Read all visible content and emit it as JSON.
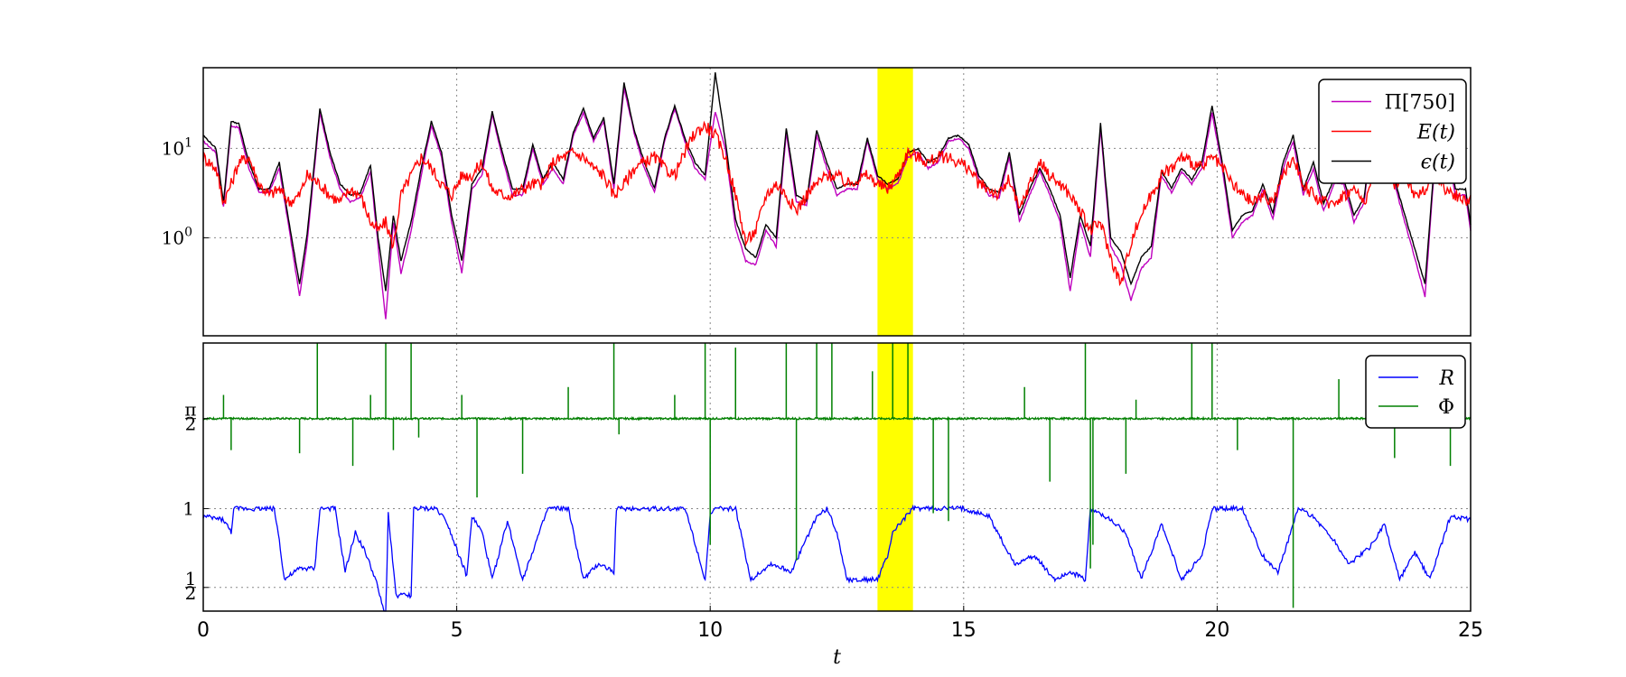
{
  "chart_data": [
    {
      "type": "line",
      "panel": "top",
      "yscale": "log",
      "xlim": [
        0,
        25
      ],
      "ylim": [
        0.08,
        80
      ],
      "grid": true,
      "legend_position": "top-right",
      "highlight_span": {
        "x": [
          13.3,
          14.0
        ],
        "color": "#ffff00"
      },
      "y_tick_labels": [
        "10^0",
        "10^1"
      ],
      "y_tick_values": [
        1,
        10
      ],
      "x": [
        0,
        0.25,
        0.4,
        0.55,
        0.7,
        0.9,
        1.1,
        1.3,
        1.5,
        1.7,
        1.9,
        2.05,
        2.3,
        2.5,
        2.7,
        2.9,
        3.1,
        3.3,
        3.45,
        3.6,
        3.75,
        3.9,
        4.1,
        4.3,
        4.5,
        4.7,
        4.9,
        5.1,
        5.3,
        5.5,
        5.7,
        5.9,
        6.1,
        6.3,
        6.5,
        6.7,
        6.9,
        7.1,
        7.3,
        7.5,
        7.7,
        7.9,
        8.1,
        8.3,
        8.5,
        8.7,
        8.9,
        9.1,
        9.3,
        9.5,
        9.7,
        9.9,
        10.1,
        10.3,
        10.5,
        10.7,
        10.9,
        11.1,
        11.3,
        11.5,
        11.7,
        11.9,
        12.1,
        12.3,
        12.5,
        12.7,
        12.9,
        13.1,
        13.3,
        13.5,
        13.7,
        13.9,
        14.1,
        14.3,
        14.5,
        14.7,
        14.9,
        15.1,
        15.3,
        15.5,
        15.7,
        15.9,
        16.1,
        16.3,
        16.5,
        16.7,
        16.9,
        17.1,
        17.3,
        17.5,
        17.7,
        17.9,
        18.1,
        18.3,
        18.5,
        18.7,
        18.9,
        19.1,
        19.3,
        19.5,
        19.7,
        19.9,
        20.1,
        20.3,
        20.5,
        20.7,
        20.9,
        21.1,
        21.3,
        21.5,
        21.7,
        21.9,
        22.1,
        22.3,
        22.5,
        22.7,
        22.9,
        23.1,
        23.3,
        23.5,
        23.7,
        23.9,
        24.1,
        24.3,
        24.5,
        24.7,
        24.9,
        25
      ],
      "series": [
        {
          "name": "Π[750]",
          "color": "#bf00bf",
          "values": [
            12,
            9,
            2.2,
            18,
            17,
            6,
            3.2,
            3.2,
            6,
            1.2,
            0.22,
            0.9,
            25,
            8,
            3.5,
            2.5,
            2.8,
            5.5,
            0.8,
            0.12,
            1.5,
            0.4,
            1.2,
            5,
            18,
            8,
            1.5,
            0.4,
            3.5,
            5,
            24,
            8,
            3,
            3,
            10,
            4,
            6,
            4,
            14,
            25,
            12,
            20,
            3.5,
            48,
            15,
            6,
            3.2,
            12,
            28,
            12,
            6,
            4.5,
            26,
            10,
            1.3,
            0.55,
            0.5,
            1.2,
            0.8,
            15,
            2.5,
            2.3,
            14,
            6,
            3,
            3.5,
            3.5,
            12,
            4.5,
            3.5,
            4,
            8,
            9,
            6,
            7,
            12,
            13,
            10,
            4.5,
            3,
            2.8,
            8,
            1.5,
            3,
            5.5,
            3,
            1.5,
            0.25,
            1.5,
            0.6,
            17,
            0.8,
            0.5,
            0.2,
            0.45,
            0.6,
            5,
            3.2,
            5.5,
            4,
            6,
            25,
            6,
            1,
            1.5,
            1.8,
            3.5,
            1.6,
            6,
            12,
            3,
            6,
            2,
            4,
            4,
            1.5,
            2.5,
            25,
            8,
            4,
            1.5,
            0.6,
            0.22,
            8,
            12,
            3,
            3,
            1.2
          ]
        },
        {
          "name": "E(t)",
          "color": "#ff0000",
          "values": [
            8,
            6,
            2.5,
            4,
            7,
            8,
            4,
            3,
            3.5,
            2.5,
            3,
            5,
            4,
            3,
            2.5,
            3.5,
            3,
            1.5,
            1.2,
            1.5,
            0.8,
            3,
            5,
            8,
            6,
            4,
            3,
            5,
            5,
            7,
            3.5,
            3,
            3,
            3.5,
            4,
            4,
            7,
            8,
            9,
            8,
            6,
            5,
            3,
            4,
            6,
            7,
            8,
            6,
            5,
            9,
            15,
            18,
            14,
            8,
            3,
            0.9,
            1.2,
            3,
            4,
            3,
            2,
            3,
            4,
            5,
            5,
            4,
            4.5,
            5,
            4,
            3.5,
            5,
            9,
            8,
            7,
            8,
            8,
            7,
            6,
            4,
            3.5,
            3,
            4.5,
            2,
            4,
            7,
            5,
            4,
            3,
            2,
            1.2,
            1.5,
            0.6,
            0.3,
            0.9,
            1.8,
            3,
            5,
            6,
            8,
            7,
            6,
            8,
            6,
            4,
            3,
            2.5,
            3,
            2.5,
            5,
            8,
            4,
            3,
            2.5,
            2.5,
            3,
            3.5,
            2.5,
            5,
            6,
            4,
            5,
            3,
            3.5,
            5,
            3.5,
            3,
            2.5,
            3
          ]
        },
        {
          "name": "ϵ(t)",
          "color": "#000000",
          "values": [
            14,
            10,
            2.5,
            20,
            19,
            7,
            3.5,
            3.5,
            7,
            1.4,
            0.3,
            1.1,
            28,
            9,
            4,
            3,
            3.2,
            6.5,
            1,
            0.25,
            1.8,
            0.55,
            1.5,
            6,
            20,
            9,
            1.8,
            0.55,
            4,
            6,
            26,
            9,
            3.5,
            3.5,
            11,
            4.5,
            7,
            4.5,
            15,
            28,
            13,
            22,
            4,
            55,
            16,
            7,
            3.6,
            13,
            30,
            13,
            7,
            5,
            70,
            12,
            1.6,
            0.75,
            0.6,
            1.4,
            1,
            17,
            3,
            2.6,
            16,
            7,
            3.5,
            4,
            4,
            13,
            5,
            4,
            4.5,
            9,
            10,
            7,
            8,
            13,
            14,
            11,
            5,
            3.5,
            3.2,
            9,
            1.8,
            3.5,
            6,
            3.5,
            1.8,
            0.35,
            1.8,
            0.8,
            19,
            1,
            0.7,
            0.3,
            0.6,
            0.8,
            5.5,
            3.6,
            6,
            4.5,
            7,
            30,
            7,
            1.2,
            1.8,
            2,
            4,
            1.9,
            7,
            14,
            3.5,
            7,
            2.4,
            4.5,
            4.5,
            1.8,
            2.8,
            28,
            9,
            4.5,
            1.8,
            0.75,
            0.3,
            9,
            14,
            3.5,
            3.5,
            1.4
          ]
        }
      ]
    },
    {
      "type": "line",
      "panel": "bottom",
      "xlim": [
        0,
        25
      ],
      "xlabel": "t",
      "x_tick_labels": [
        "0",
        "5",
        "10",
        "15",
        "20",
        "25"
      ],
      "grid": true,
      "legend_position": "top-right",
      "highlight_span": {
        "x": [
          13.3,
          14.0
        ],
        "color": "#ffff00"
      },
      "y_tick_labels": [
        "1/2",
        "1",
        "π/2"
      ],
      "y_tick_values": [
        0.5,
        1,
        1.5708
      ],
      "series": [
        {
          "name": "R",
          "color": "#0000ff",
          "x": [
            0,
            0.4,
            0.55,
            0.6,
            1.4,
            1.5,
            1.6,
            1.9,
            2.2,
            2.3,
            2.6,
            2.8,
            3.0,
            3.2,
            3.4,
            3.6,
            3.65,
            3.8,
            4.1,
            4.15,
            4.6,
            4.8,
            5.2,
            5.3,
            5.5,
            5.7,
            6.0,
            6.3,
            6.8,
            7.2,
            7.5,
            7.8,
            8.1,
            8.15,
            9.5,
            9.6,
            9.9,
            10.0,
            10.1,
            10.5,
            10.8,
            11.2,
            11.6,
            12.1,
            12.3,
            12.5,
            12.7,
            13.0,
            13.3,
            13.5,
            13.6,
            14.0,
            14.5,
            15.0,
            15.5,
            16.0,
            16.4,
            16.8,
            17.1,
            17.4,
            17.5,
            17.8,
            18.2,
            18.5,
            18.9,
            19.3,
            19.7,
            19.9,
            20.5,
            20.9,
            21.2,
            21.5,
            21.6,
            21.9,
            22.3,
            22.6,
            23.0,
            23.3,
            23.6,
            23.9,
            24.2,
            24.6,
            25
          ],
          "values": [
            0.95,
            0.93,
            0.85,
            1.0,
            1.0,
            0.8,
            0.55,
            0.62,
            0.62,
            1.0,
            1.0,
            0.6,
            0.85,
            0.72,
            0.55,
            0.3,
            0.97,
            0.45,
            0.45,
            1.0,
            1.0,
            0.92,
            0.57,
            0.95,
            0.85,
            0.55,
            0.92,
            0.55,
            1.0,
            1.0,
            0.55,
            0.65,
            0.6,
            1.0,
            1.0,
            0.9,
            0.55,
            0.95,
            1.0,
            1.0,
            0.55,
            0.65,
            0.6,
            0.95,
            1.0,
            0.85,
            0.55,
            0.55,
            0.55,
            0.7,
            0.85,
            1.0,
            1.0,
            1.0,
            0.95,
            0.65,
            0.7,
            0.55,
            0.6,
            0.55,
            1.0,
            0.95,
            0.85,
            0.55,
            0.9,
            0.55,
            0.7,
            1.0,
            1.0,
            0.7,
            0.6,
            0.9,
            1.0,
            0.95,
            0.8,
            0.65,
            0.75,
            0.9,
            0.55,
            0.72,
            0.55,
            0.95,
            0.93
          ]
        },
        {
          "name": "Φ",
          "color": "#008000",
          "baseline": 1.5708,
          "spike_t": [
            0.4,
            0.55,
            1.9,
            2.25,
            2.95,
            3.3,
            3.6,
            3.75,
            4.1,
            4.25,
            5.1,
            5.4,
            6.3,
            7.2,
            8.1,
            8.2,
            9.3,
            9.9,
            10.0,
            10.5,
            11.5,
            11.7,
            12.1,
            12.4,
            13.2,
            13.6,
            13.9,
            14.4,
            14.7,
            16.2,
            16.7,
            17.4,
            17.5,
            17.55,
            18.2,
            18.4,
            19.5,
            19.9,
            20.4,
            21.5,
            22.4,
            23.1,
            23.5,
            24.6
          ],
          "spike_amp": [
            0.15,
            -0.2,
            -0.22,
            1.0,
            -0.3,
            0.15,
            0.8,
            -0.2,
            0.7,
            -0.12,
            0.15,
            -0.5,
            -0.35,
            0.2,
            1.0,
            -0.1,
            0.15,
            0.8,
            -0.8,
            0.45,
            1.0,
            -0.9,
            0.8,
            0.9,
            0.3,
            1.0,
            0.85,
            -0.6,
            -0.65,
            0.2,
            -0.4,
            1.0,
            -0.95,
            -0.8,
            -0.35,
            0.12,
            0.6,
            1.0,
            -0.2,
            -1.2,
            0.25,
            0.2,
            -0.25,
            -0.3
          ]
        }
      ]
    }
  ]
}
